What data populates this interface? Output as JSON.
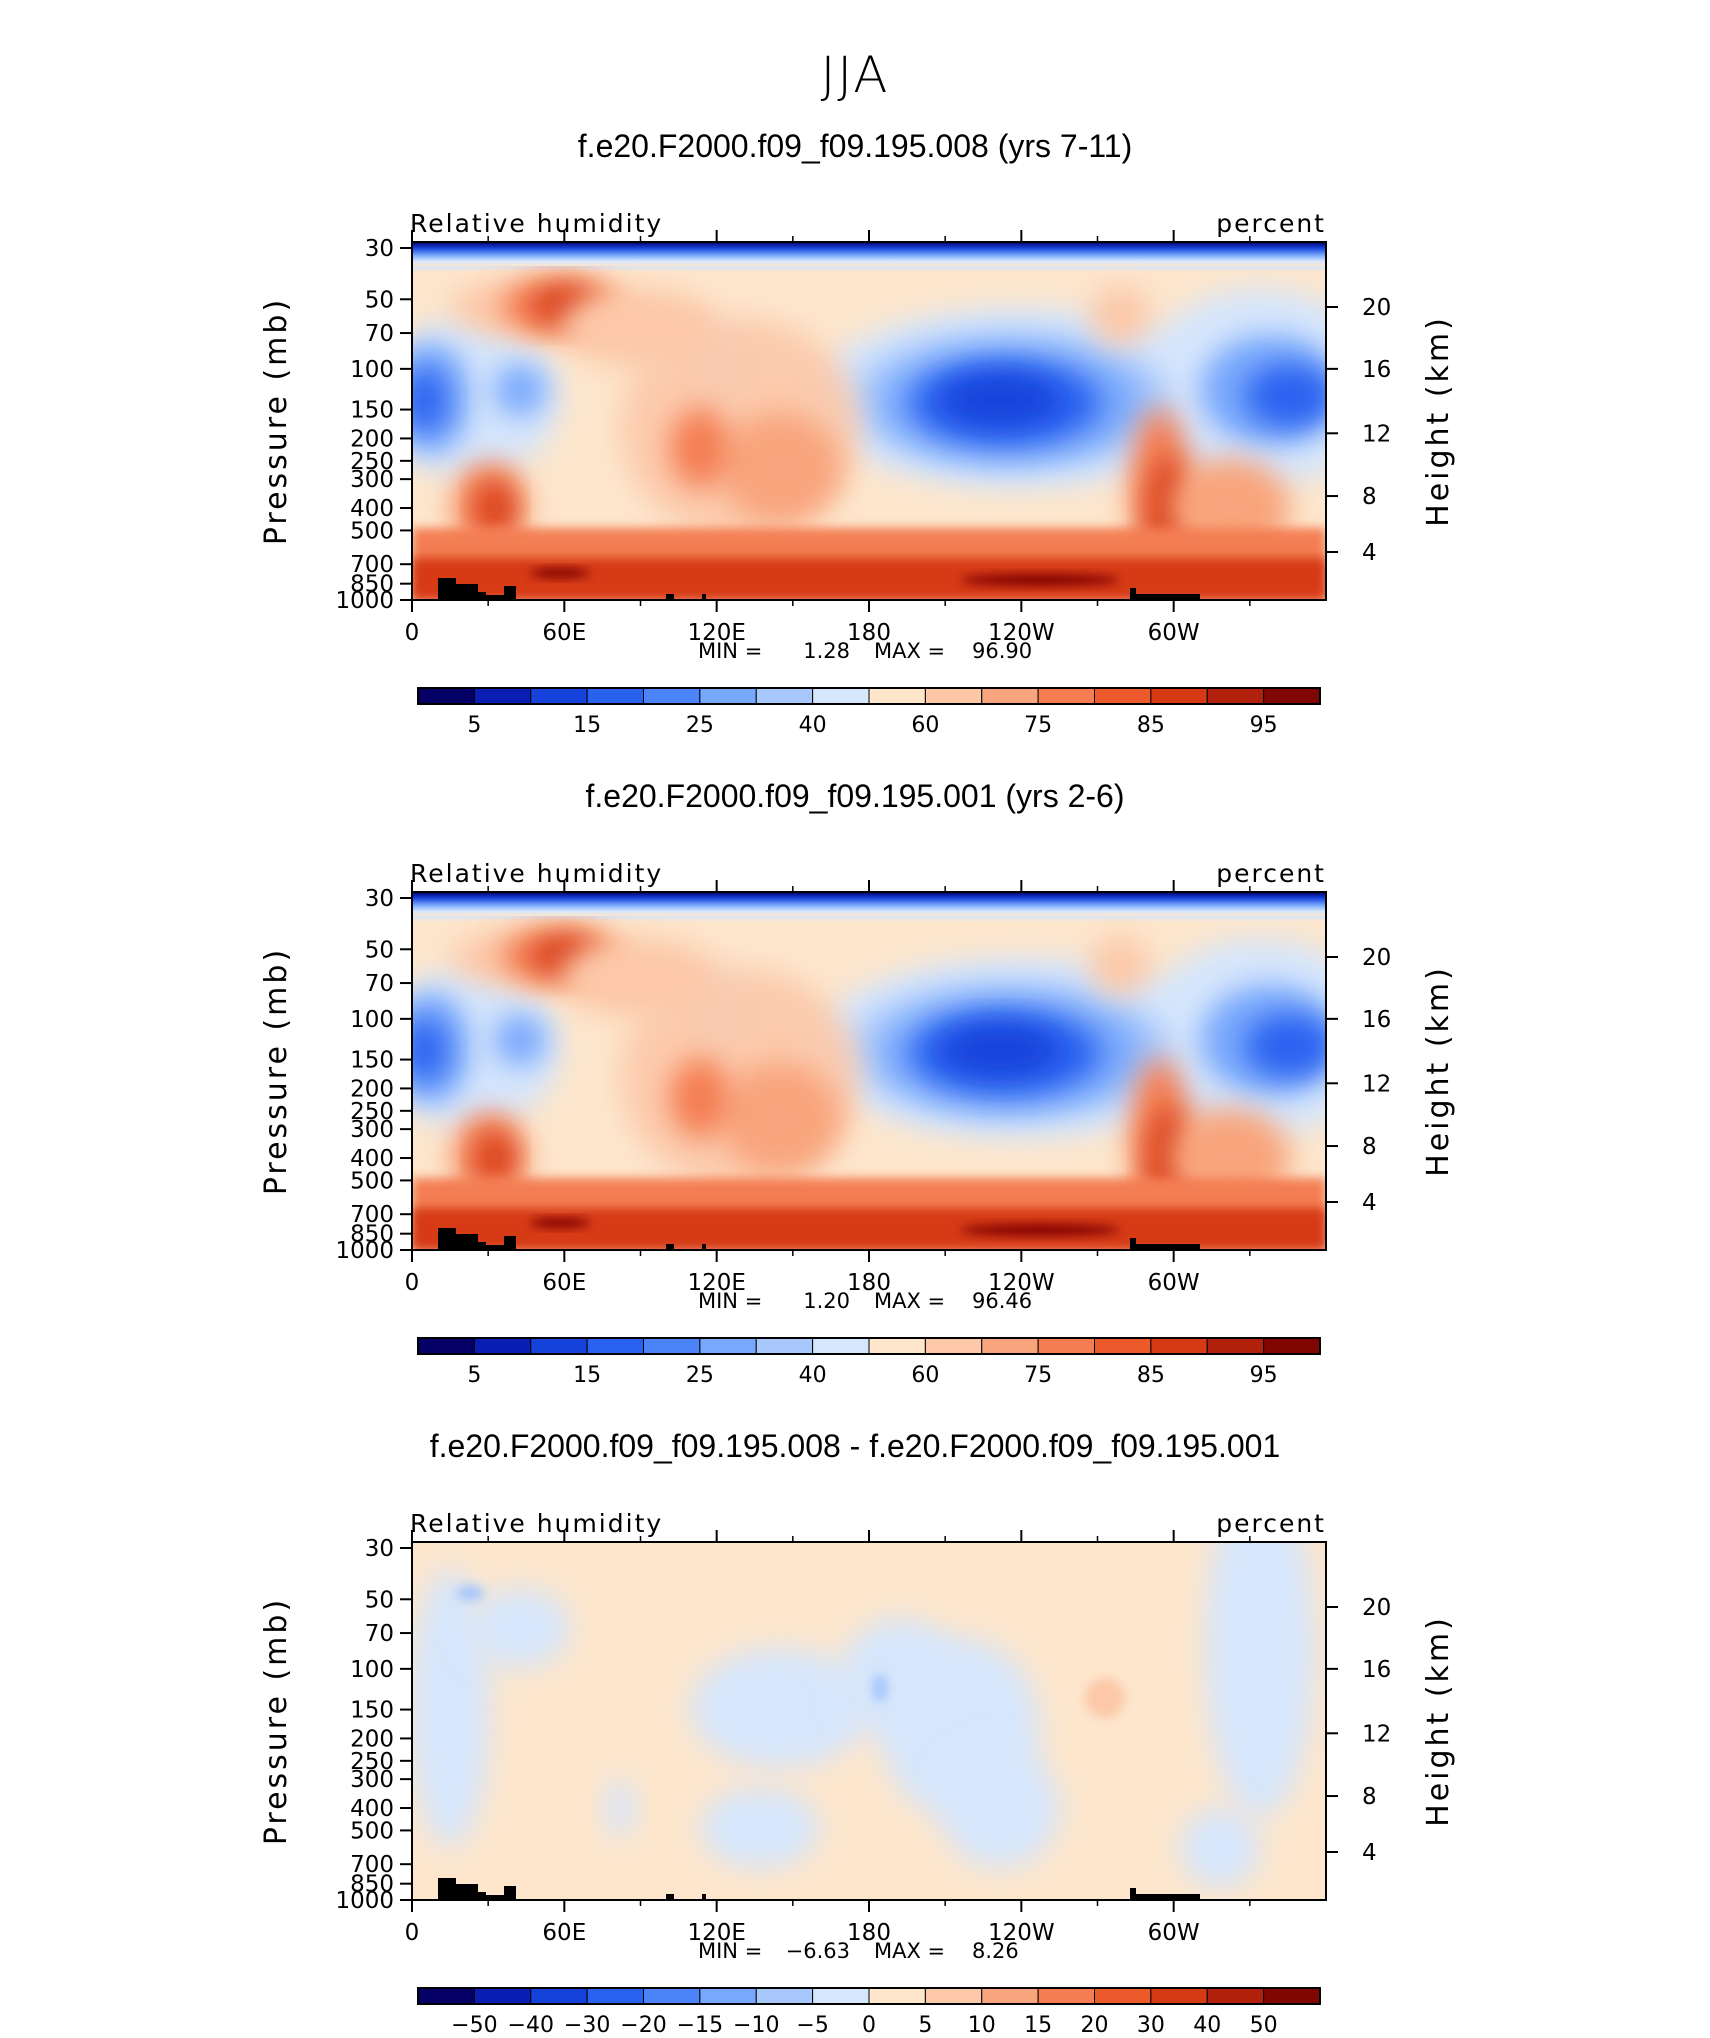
{
  "page_title": "JJA",
  "chart_data": [
    {
      "type": "heatmap",
      "title": "f.e20.F2000.f09_f09.195.008 (yrs 7-11)",
      "variable_label": "Relative humidity",
      "units_label": "percent",
      "ylabel": "Pressure (mb)",
      "ylabel_right": "Height (km)",
      "x_ticks": [
        "0",
        "60E",
        "120E",
        "180",
        "120W",
        "60W"
      ],
      "y_ticks": [
        "30",
        "50",
        "70",
        "100",
        "150",
        "200",
        "250",
        "300",
        "400",
        "500",
        "700",
        "850",
        "1000"
      ],
      "y_right_ticks": [
        "20",
        "16",
        "12",
        "8",
        "4"
      ],
      "stats": {
        "min_label": "MIN =",
        "min": "1.28",
        "max_label": "MAX =",
        "max": "96.90"
      },
      "colorbar_labels": [
        "5",
        "15",
        "25",
        "40",
        "60",
        "75",
        "85",
        "95"
      ],
      "colorbar_colors": [
        "#040066",
        "#0a1eb4",
        "#1642dc",
        "#2a62f0",
        "#4a84f8",
        "#78a8fc",
        "#a8c8fc",
        "#d6e6fc",
        "#fde6cc",
        "#fcc8a8",
        "#f8a47c",
        "#f47e52",
        "#ec5a2c",
        "#d63a14",
        "#b0200a",
        "#800604"
      ]
    },
    {
      "type": "heatmap",
      "title": "f.e20.F2000.f09_f09.195.001 (yrs 2-6)",
      "variable_label": "Relative humidity",
      "units_label": "percent",
      "ylabel": "Pressure (mb)",
      "ylabel_right": "Height (km)",
      "x_ticks": [
        "0",
        "60E",
        "120E",
        "180",
        "120W",
        "60W"
      ],
      "y_ticks": [
        "30",
        "50",
        "70",
        "100",
        "150",
        "200",
        "250",
        "300",
        "400",
        "500",
        "700",
        "850",
        "1000"
      ],
      "y_right_ticks": [
        "20",
        "16",
        "12",
        "8",
        "4"
      ],
      "stats": {
        "min_label": "MIN =",
        "min": "1.20",
        "max_label": "MAX =",
        "max": "96.46"
      },
      "colorbar_labels": [
        "5",
        "15",
        "25",
        "40",
        "60",
        "75",
        "85",
        "95"
      ],
      "colorbar_colors": [
        "#040066",
        "#0a1eb4",
        "#1642dc",
        "#2a62f0",
        "#4a84f8",
        "#78a8fc",
        "#a8c8fc",
        "#d6e6fc",
        "#fde6cc",
        "#fcc8a8",
        "#f8a47c",
        "#f47e52",
        "#ec5a2c",
        "#d63a14",
        "#b0200a",
        "#800604"
      ]
    },
    {
      "type": "heatmap",
      "title": "f.e20.F2000.f09_f09.195.008 - f.e20.F2000.f09_f09.195.001",
      "variable_label": "Relative humidity",
      "units_label": "percent",
      "ylabel": "Pressure (mb)",
      "ylabel_right": "Height (km)",
      "x_ticks": [
        "0",
        "60E",
        "120E",
        "180",
        "120W",
        "60W"
      ],
      "y_ticks": [
        "30",
        "50",
        "70",
        "100",
        "150",
        "200",
        "250",
        "300",
        "400",
        "500",
        "700",
        "850",
        "1000"
      ],
      "y_right_ticks": [
        "20",
        "16",
        "12",
        "8",
        "4"
      ],
      "stats": {
        "min_label": "MIN =",
        "min": "−6.63",
        "max_label": "MAX =",
        "max": "8.26"
      },
      "colorbar_labels": [
        "−50",
        "−40",
        "−30",
        "−20",
        "−15",
        "−10",
        "−5",
        "0",
        "5",
        "10",
        "15",
        "20",
        "30",
        "40",
        "50"
      ],
      "colorbar_colors": [
        "#040066",
        "#0a1eb4",
        "#1642dc",
        "#2a62f0",
        "#4a84f8",
        "#78a8fc",
        "#a8c8fc",
        "#d6e6fc",
        "#fde6cc",
        "#fcc8a8",
        "#f8a47c",
        "#f47e52",
        "#ec5a2c",
        "#d63a14",
        "#b0200a",
        "#800604"
      ]
    }
  ]
}
